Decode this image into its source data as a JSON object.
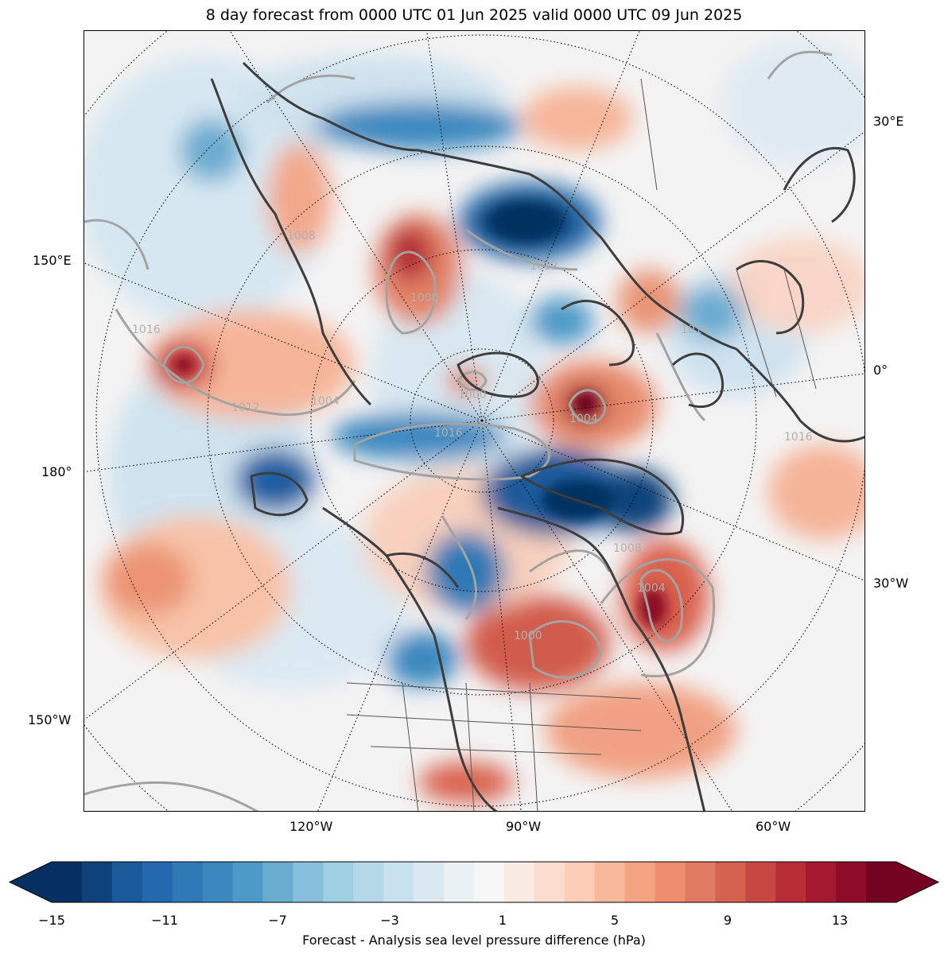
{
  "title": "8 day forecast from 0000 UTC 01 Jun 2025 valid 0000 UTC 09 Jun 2025",
  "map": {
    "left_labels": [
      "150°E",
      "180°",
      "150°W"
    ],
    "right_labels": [
      "30°E",
      "0°",
      "30°W"
    ],
    "bottom_labels": [
      "120°W",
      "90°W",
      "60°W"
    ],
    "contour_labels": [
      "1016",
      "1016",
      "1012",
      "1012",
      "1008",
      "1008",
      "1004",
      "1004",
      "1004",
      "1000",
      "1000",
      "1000",
      "1016",
      "1016"
    ]
  },
  "colorbar": {
    "ticks": [
      "−15",
      "−11",
      "−7",
      "−3",
      "1",
      "5",
      "9",
      "13"
    ],
    "label": "Forecast - Analysis sea level pressure difference (hPa)",
    "colors": [
      "#053061",
      "#0e427a",
      "#1b5a9a",
      "#2468ad",
      "#2f79b5",
      "#3b88bf",
      "#4d99c8",
      "#6aacd0",
      "#87bedc",
      "#9ecfe3",
      "#b5d8e9",
      "#c7e1ed",
      "#d9e8f1",
      "#e9f1f5",
      "#f7f6f6",
      "#f9ebe4",
      "#fbddd0",
      "#fbcdb6",
      "#f8b99b",
      "#f5a482",
      "#ee8e6e",
      "#e07a60",
      "#d4624f",
      "#c74842",
      "#b82c36",
      "#a4192e",
      "#8e0c28",
      "#740322"
    ]
  }
}
